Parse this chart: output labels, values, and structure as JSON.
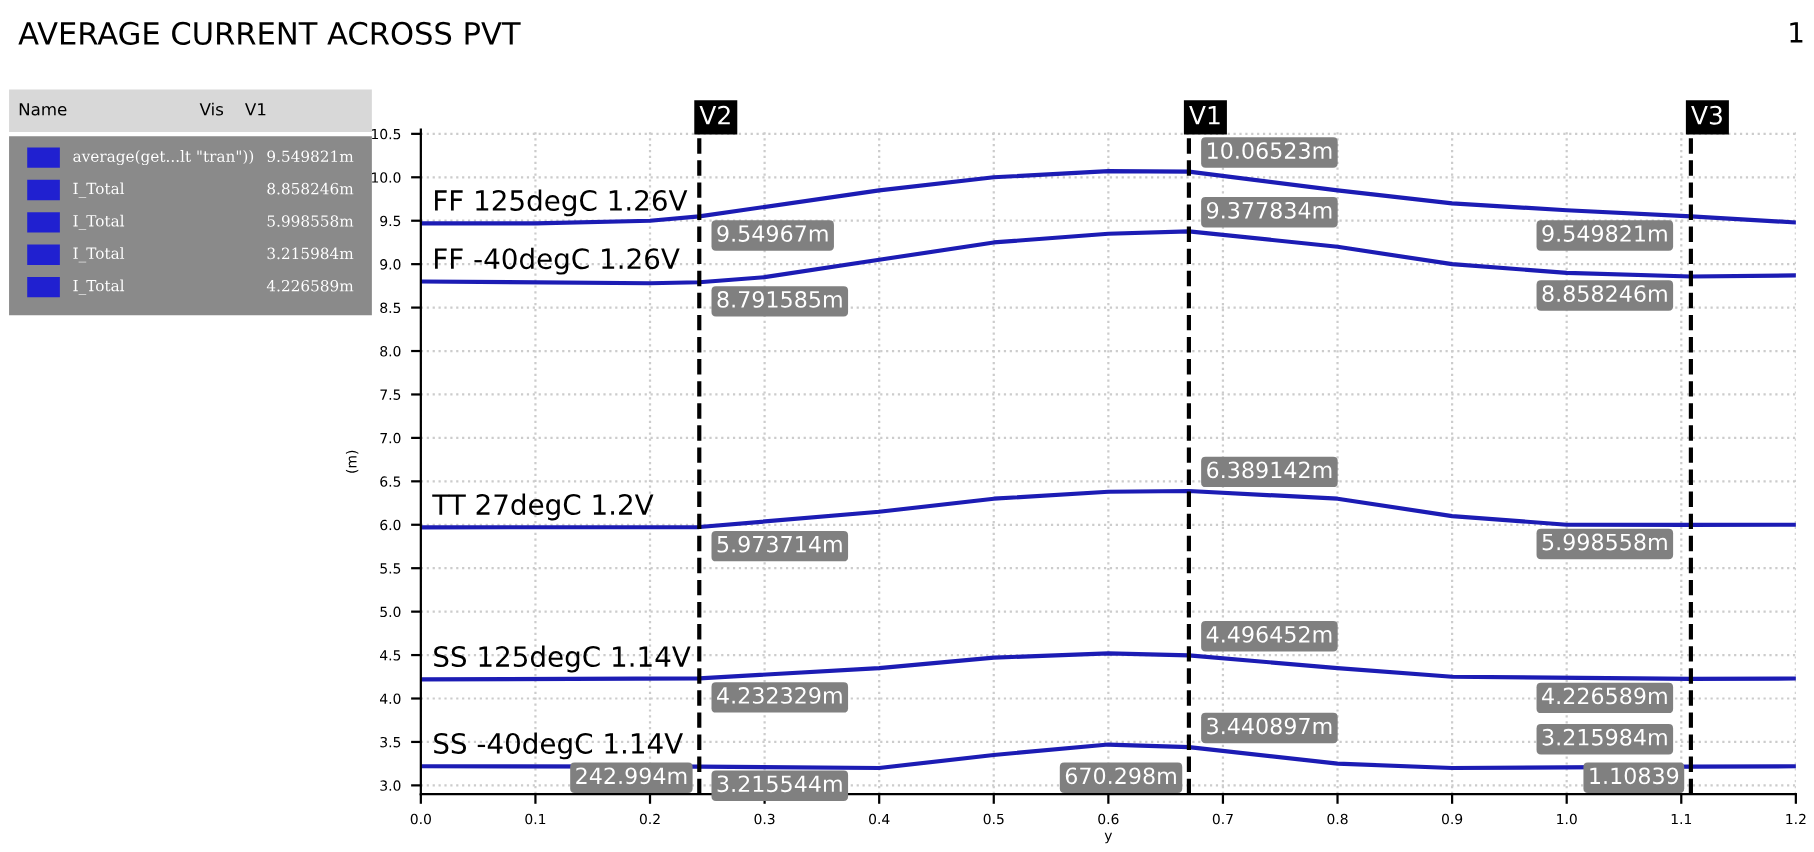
{
  "chart_data": {
    "type": "line",
    "title": "AVERAGE CURRENT ACROSS PVT",
    "xlabel": "y",
    "ylabel": "(m)",
    "xlim": [
      0.0,
      1.2
    ],
    "xticks": [
      {
        "value": 0,
        "label": "0.0"
      },
      0.1,
      0.2,
      0.3,
      0.4,
      0.5,
      0.6,
      0.7,
      0.8,
      0.9,
      {
        "value": 1,
        "label": "1.0"
      },
      1.1,
      1.2
    ],
    "ylim": [
      2.9,
      10.55
    ],
    "yticks": [
      {
        "value": 3,
        "label": "3.0"
      },
      3.5,
      {
        "value": 4,
        "label": "4.0"
      },
      4.5,
      {
        "value": 5,
        "label": "5.0"
      },
      5.5,
      {
        "value": 6,
        "label": "6.0"
      },
      6.5,
      {
        "value": 7,
        "label": "7.0"
      },
      7.5,
      {
        "value": 8,
        "label": "8.0"
      },
      8.5,
      {
        "value": 9,
        "label": "9.0"
      },
      9.5,
      {
        "value": 10,
        "label": "10.0"
      },
      10.5
    ],
    "grid": true,
    "marker": "none",
    "line_style": "solid",
    "series": [
      {
        "name": "FF 125degC 1.26V",
        "color": "#1c1cb4",
        "x": [
          0,
          0.1,
          0.2,
          0.242994,
          0.4,
          0.5,
          0.6,
          0.670298,
          0.8,
          0.9,
          1.0,
          1.10839,
          1.2
        ],
        "values": [
          9.47,
          9.47,
          9.5,
          9.54967,
          9.85,
          10.0,
          10.07,
          10.06523,
          9.85,
          9.7,
          9.62,
          9.549821,
          9.48
        ]
      },
      {
        "name": "FF -40degC 1.26V",
        "color": "#1c1cb4",
        "x": [
          0,
          0.2,
          0.242994,
          0.3,
          0.4,
          0.5,
          0.6,
          0.670298,
          0.8,
          0.9,
          1.0,
          1.10839,
          1.2
        ],
        "values": [
          8.8,
          8.78,
          8.791585,
          8.85,
          9.05,
          9.25,
          9.35,
          9.377834,
          9.2,
          9.0,
          8.9,
          8.858246,
          8.87
        ]
      },
      {
        "name": "TT 27degC 1.2V",
        "color": "#1c1cb4",
        "x": [
          0,
          0.242994,
          0.4,
          0.5,
          0.6,
          0.670298,
          0.8,
          0.9,
          1.0,
          1.10839,
          1.2
        ],
        "values": [
          5.97,
          5.973714,
          6.15,
          6.3,
          6.38,
          6.389142,
          6.3,
          6.1,
          6.0,
          5.998558,
          6.0
        ]
      },
      {
        "name": "SS 125degC 1.14V",
        "color": "#1c1cb4",
        "x": [
          0,
          0.242994,
          0.4,
          0.5,
          0.6,
          0.670298,
          0.8,
          0.9,
          1.10839,
          1.2
        ],
        "values": [
          4.22,
          4.232329,
          4.35,
          4.47,
          4.52,
          4.496452,
          4.35,
          4.25,
          4.226589,
          4.23
        ]
      },
      {
        "name": "SS -40degC 1.14V",
        "color": "#1c1cb4",
        "x": [
          0,
          0.242994,
          0.4,
          0.5,
          0.6,
          0.670298,
          0.8,
          0.9,
          1.10839,
          1.2
        ],
        "values": [
          3.22,
          3.215544,
          3.2,
          3.35,
          3.47,
          3.440897,
          3.25,
          3.2,
          3.215984,
          3.22
        ]
      }
    ],
    "ref_lines": [
      {
        "axis": "x",
        "value": 0.242994,
        "label": "V2",
        "color": "#000000",
        "line_style": "dashed"
      },
      {
        "axis": "x",
        "value": 0.670298,
        "label": "V1",
        "color": "#000000",
        "line_style": "dashed"
      },
      {
        "axis": "x",
        "value": 1.10839,
        "label": "V3",
        "color": "#000000",
        "line_style": "dashed"
      }
    ],
    "annotations": [
      "1",
      "Name",
      "Vis",
      "V1",
      "average(get...lt \"tran\"))",
      "9.549821m",
      "I_Total",
      "8.858246m",
      "I_Total",
      "5.998558m",
      "I_Total",
      "3.215984m",
      "I_Total",
      "4.226589m",
      {
        "text": "9.54967m",
        "x": 0.242994,
        "y": 9.54967
      },
      {
        "text": "8.791585m",
        "x": 0.242994,
        "y": 8.791585
      },
      {
        "text": "5.973714m",
        "x": 0.242994,
        "y": 5.973714
      },
      {
        "text": "4.232329m",
        "x": 0.242994,
        "y": 4.232329
      },
      {
        "text": "3.215544m",
        "x": 0.242994,
        "y": 3.215544
      },
      {
        "text": "10.06523m",
        "x": 0.670298,
        "y": 10.06523
      },
      {
        "text": "9.377834m",
        "x": 0.670298,
        "y": 9.377834
      },
      {
        "text": "6.389142m",
        "x": 0.670298,
        "y": 6.389142
      },
      {
        "text": "4.496452m",
        "x": 0.670298,
        "y": 4.496452
      },
      {
        "text": "3.440897m",
        "x": 0.670298,
        "y": 3.440897
      },
      {
        "text": "9.549821m",
        "x": 1.10839,
        "y": 9.549821
      },
      {
        "text": "8.858246m",
        "x": 1.10839,
        "y": 8.858246
      },
      {
        "text": "5.998558m",
        "x": 1.10839,
        "y": 5.998558
      },
      {
        "text": "4.226589m",
        "x": 1.10839,
        "y": 4.226589
      },
      {
        "text": "3.215984m",
        "x": 1.10839,
        "y": 3.215984
      },
      {
        "text": "242.994m",
        "x": 0.242994,
        "y": 2.9
      },
      {
        "text": "670.298m",
        "x": 0.670298,
        "y": 2.9
      },
      {
        "text": "1.10839",
        "x": 1.10839,
        "y": 2.9
      }
    ]
  }
}
